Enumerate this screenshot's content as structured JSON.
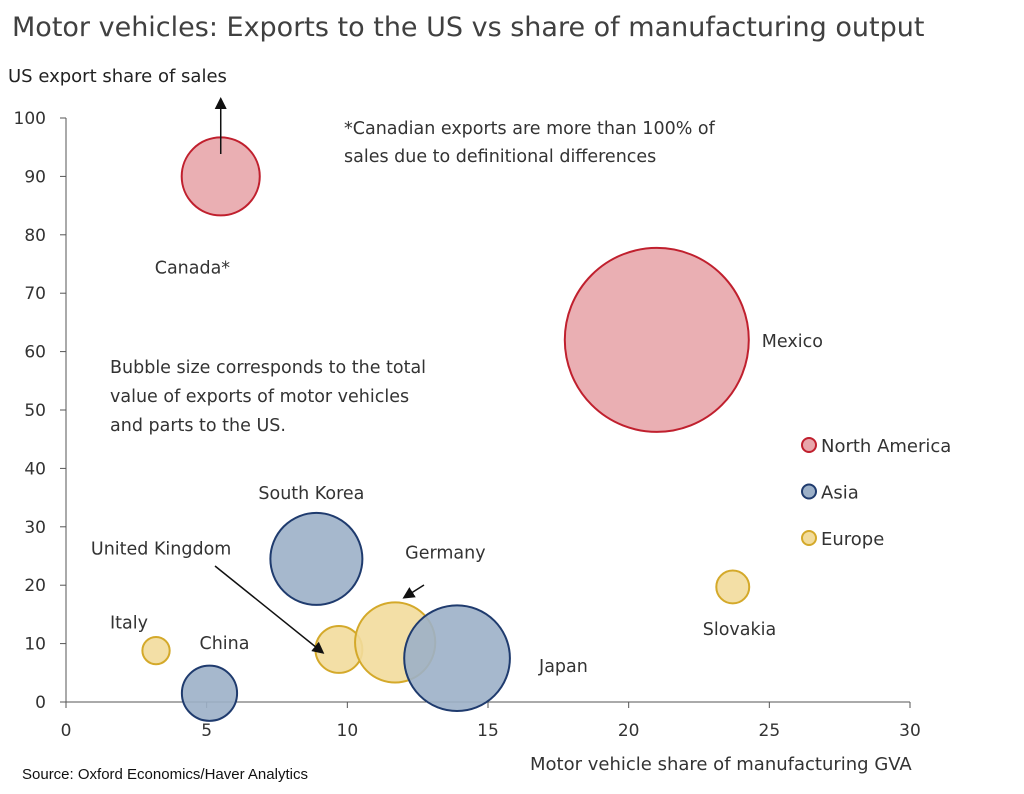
{
  "chart_data": {
    "type": "bubble",
    "title": "Motor vehicles: Exports to the US vs share of manufacturing output",
    "xlabel": "Motor vehicle share of manufacturing GVA",
    "ylabel": "US export share of sales",
    "xlim": [
      0,
      30
    ],
    "ylim": [
      0,
      100
    ],
    "xticks": [
      0,
      5,
      10,
      15,
      20,
      25,
      30
    ],
    "yticks": [
      0,
      10,
      20,
      30,
      40,
      50,
      60,
      70,
      80,
      90,
      100
    ],
    "series": [
      {
        "name": "North America",
        "fill": "#e8a6ab",
        "stroke": "#c0202e"
      },
      {
        "name": "Asia",
        "fill": "#9cb0c8",
        "stroke": "#1f3b6e"
      },
      {
        "name": "Europe",
        "fill": "#f2dc9c",
        "stroke": "#d4a92a"
      }
    ],
    "points": [
      {
        "label": "Canada*",
        "region": "North America",
        "x": 5.5,
        "y": 90,
        "size": 18
      },
      {
        "label": "Mexico",
        "region": "North America",
        "x": 21,
        "y": 62,
        "size": 100
      },
      {
        "label": "South Korea",
        "region": "Asia",
        "x": 8.9,
        "y": 24.5,
        "size": 25
      },
      {
        "label": "Japan",
        "region": "Asia",
        "x": 13.9,
        "y": 7.5,
        "size": 33
      },
      {
        "label": "China",
        "region": "Asia",
        "x": 5.1,
        "y": 1.5,
        "size": 9
      },
      {
        "label": "Germany",
        "region": "Europe",
        "x": 11.7,
        "y": 10.2,
        "size": 19
      },
      {
        "label": "United Kingdom",
        "region": "Europe",
        "x": 9.7,
        "y": 9,
        "size": 6.5
      },
      {
        "label": "Italy",
        "region": "Europe",
        "x": 3.2,
        "y": 8.8,
        "size": 2.2
      },
      {
        "label": "Slovakia",
        "region": "Europe",
        "x": 23.7,
        "y": 19.7,
        "size": 3.2
      }
    ],
    "notes": [
      "*Canadian exports are more than 100% of",
      "sales due to definitional differences"
    ],
    "size_note": [
      "Bubble size corresponds to the total",
      "value of exports of motor vehicles",
      "and parts to the US."
    ],
    "source": "Source: Oxford Economics/Haver Analytics"
  }
}
